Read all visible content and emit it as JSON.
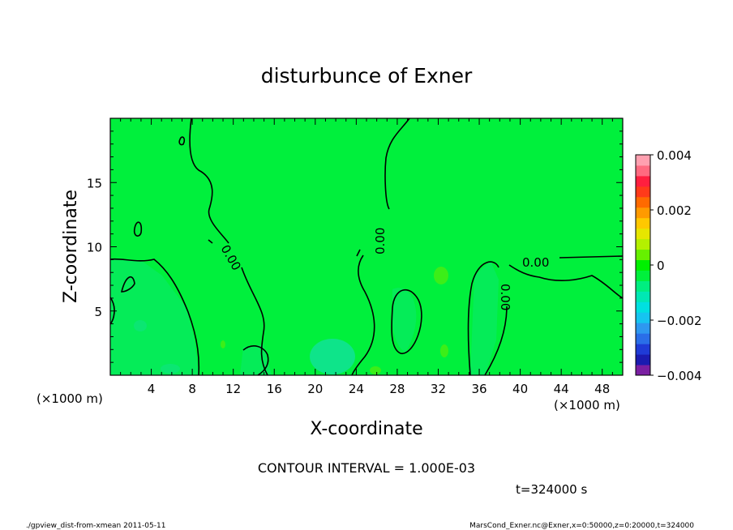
{
  "chart_data": {
    "type": "heatmap",
    "title": "disturbunce of Exner",
    "xlabel": "X-coordinate",
    "ylabel": "Z-coordinate",
    "x_unit": "(×1000 m)",
    "z_unit": "(×1000 m)",
    "xlim": [
      0,
      50
    ],
    "ylim": [
      0,
      20
    ],
    "x_ticks": [
      "4",
      "8",
      "12",
      "16",
      "20",
      "24",
      "28",
      "32",
      "36",
      "40",
      "44",
      "48"
    ],
    "y_ticks": [
      "5",
      "10",
      "15"
    ],
    "colorbar": {
      "ticks": [
        "0.004",
        "0.002",
        "0",
        "−0.002",
        "−0.004"
      ],
      "range": [
        -0.004,
        0.004
      ],
      "colors": [
        "#7a1fa2",
        "#1b1bb0",
        "#1f3bd6",
        "#2a6ee8",
        "#2e98f0",
        "#16c4f0",
        "#00e0e0",
        "#00e8b4",
        "#00ee80",
        "#00f03c",
        "#00f000",
        "#66f000",
        "#b4f000",
        "#e6e600",
        "#ffc800",
        "#ff9a00",
        "#ff6a00",
        "#ff3a1a",
        "#ff1f3f",
        "#ff6a80",
        "#ffa0b0"
      ]
    },
    "contour_labels": [
      "0.00",
      "0.00",
      "0.00",
      "0.00"
    ],
    "contour_interval": "CONTOUR INTERVAL = 1.000E-03",
    "time": "t=324000 s"
  },
  "footer": {
    "left": "./gpview_dist-from-xmean  2011-05-11",
    "right": "MarsCond_Exner.nc@Exner,x=0:50000,z=0:20000,t=324000"
  }
}
